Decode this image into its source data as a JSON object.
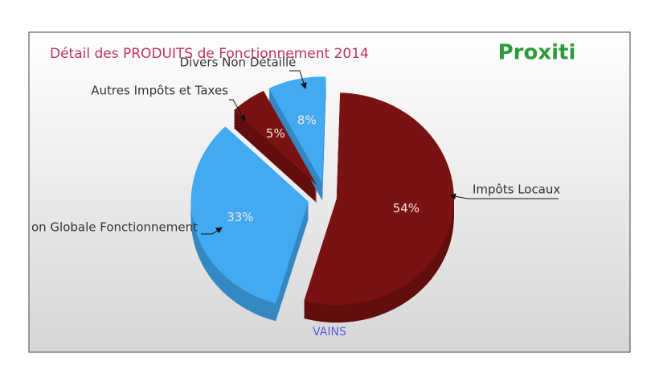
{
  "chart_data": {
    "type": "pie",
    "title": "Détail des PRODUITS de Fonctionnement 2014",
    "subtitle": "VAINS",
    "logo": "Proxiti",
    "categories": [
      "Impôts Locaux",
      "on Globale Fonctionnement",
      "Autres Impôts et Taxes",
      "Divers Non Détaillé"
    ],
    "values": [
      54,
      33,
      5,
      8
    ],
    "value_labels": [
      "54%",
      "33%",
      "5%",
      "8%"
    ],
    "colors": [
      "#7a1212",
      "#42aaf2",
      "#7a1212",
      "#42aaf2"
    ]
  }
}
